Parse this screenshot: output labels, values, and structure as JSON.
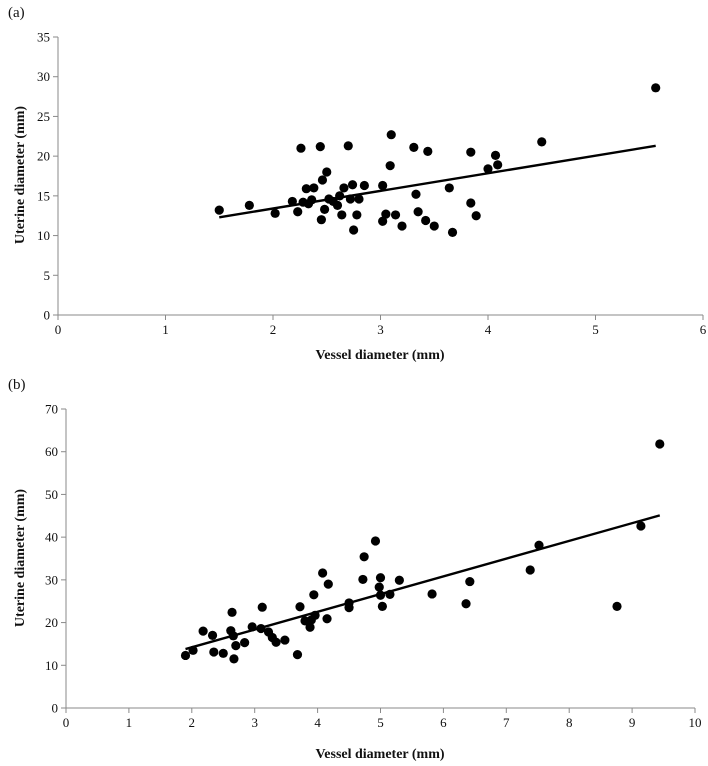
{
  "chart_data": [
    {
      "panel_label": "(a)",
      "type": "scatter",
      "xlabel": "Vessel diameter (mm)",
      "ylabel": "Uterine diameter (mm)",
      "xlim": [
        0,
        6
      ],
      "ylim": [
        0,
        35
      ],
      "xticks": [
        0,
        1,
        2,
        3,
        4,
        5,
        6
      ],
      "yticks": [
        0,
        5,
        10,
        15,
        20,
        25,
        30,
        35
      ],
      "points": [
        [
          1.5,
          13.2
        ],
        [
          1.78,
          13.8
        ],
        [
          2.02,
          12.8
        ],
        [
          2.18,
          14.3
        ],
        [
          2.23,
          13.0
        ],
        [
          2.26,
          21.0
        ],
        [
          2.28,
          14.2
        ],
        [
          2.31,
          15.9
        ],
        [
          2.33,
          14.0
        ],
        [
          2.36,
          14.5
        ],
        [
          2.38,
          16.0
        ],
        [
          2.44,
          21.2
        ],
        [
          2.45,
          12.0
        ],
        [
          2.46,
          17.0
        ],
        [
          2.48,
          13.3
        ],
        [
          2.5,
          18.0
        ],
        [
          2.52,
          14.6
        ],
        [
          2.56,
          14.3
        ],
        [
          2.6,
          13.8
        ],
        [
          2.62,
          15.0
        ],
        [
          2.64,
          12.6
        ],
        [
          2.66,
          16.0
        ],
        [
          2.7,
          21.3
        ],
        [
          2.72,
          14.6
        ],
        [
          2.74,
          16.4
        ],
        [
          2.75,
          10.7
        ],
        [
          2.78,
          12.6
        ],
        [
          2.8,
          14.6
        ],
        [
          2.85,
          16.3
        ],
        [
          3.02,
          16.3
        ],
        [
          3.02,
          11.8
        ],
        [
          3.05,
          12.7
        ],
        [
          3.09,
          18.8
        ],
        [
          3.1,
          22.7
        ],
        [
          3.14,
          12.6
        ],
        [
          3.2,
          11.2
        ],
        [
          3.31,
          21.1
        ],
        [
          3.33,
          15.2
        ],
        [
          3.35,
          13.0
        ],
        [
          3.42,
          11.9
        ],
        [
          3.44,
          20.6
        ],
        [
          3.5,
          11.2
        ],
        [
          3.64,
          16.0
        ],
        [
          3.67,
          10.4
        ],
        [
          3.84,
          20.5
        ],
        [
          3.84,
          14.1
        ],
        [
          3.89,
          12.5
        ],
        [
          4.0,
          18.4
        ],
        [
          4.07,
          20.1
        ],
        [
          4.09,
          18.9
        ],
        [
          4.5,
          21.8
        ],
        [
          5.56,
          28.6
        ]
      ],
      "fit_line": {
        "x": [
          1.5,
          5.56
        ],
        "y": [
          12.3,
          21.3
        ]
      }
    },
    {
      "panel_label": "(b)",
      "type": "scatter",
      "xlabel": "Vessel diameter (mm)",
      "ylabel": "Uterine diameter (mm)",
      "xlim": [
        0,
        10
      ],
      "ylim": [
        0,
        70
      ],
      "xticks": [
        0,
        1,
        2,
        3,
        4,
        5,
        6,
        7,
        8,
        9,
        10
      ],
      "yticks": [
        0,
        10,
        20,
        30,
        40,
        50,
        60,
        70
      ],
      "points": [
        [
          1.9,
          12.3
        ],
        [
          2.02,
          13.5
        ],
        [
          2.18,
          18.0
        ],
        [
          2.33,
          17.0
        ],
        [
          2.35,
          13.1
        ],
        [
          2.5,
          12.8
        ],
        [
          2.62,
          18.1
        ],
        [
          2.64,
          22.4
        ],
        [
          2.66,
          16.9
        ],
        [
          2.67,
          11.5
        ],
        [
          2.7,
          14.6
        ],
        [
          2.84,
          15.3
        ],
        [
          2.96,
          19.0
        ],
        [
          3.1,
          18.6
        ],
        [
          3.12,
          23.6
        ],
        [
          3.22,
          17.8
        ],
        [
          3.28,
          16.5
        ],
        [
          3.34,
          15.4
        ],
        [
          3.48,
          15.9
        ],
        [
          3.68,
          12.5
        ],
        [
          3.72,
          23.7
        ],
        [
          3.8,
          20.4
        ],
        [
          3.88,
          18.9
        ],
        [
          3.9,
          20.6
        ],
        [
          3.94,
          26.5
        ],
        [
          3.96,
          21.7
        ],
        [
          4.08,
          31.6
        ],
        [
          4.15,
          20.9
        ],
        [
          4.17,
          29.0
        ],
        [
          4.5,
          23.5
        ],
        [
          4.5,
          24.6
        ],
        [
          4.72,
          30.1
        ],
        [
          4.74,
          35.4
        ],
        [
          4.92,
          39.1
        ],
        [
          4.98,
          28.3
        ],
        [
          5.0,
          30.5
        ],
        [
          5.0,
          26.4
        ],
        [
          5.03,
          23.8
        ],
        [
          5.15,
          26.6
        ],
        [
          5.3,
          29.9
        ],
        [
          5.82,
          26.7
        ],
        [
          6.36,
          24.4
        ],
        [
          6.42,
          29.6
        ],
        [
          7.38,
          32.3
        ],
        [
          7.52,
          38.1
        ],
        [
          8.76,
          23.8
        ],
        [
          9.14,
          42.6
        ],
        [
          9.44,
          61.8
        ]
      ],
      "fit_line": {
        "x": [
          1.9,
          9.44
        ],
        "y": [
          13.8,
          45.1
        ]
      }
    }
  ]
}
